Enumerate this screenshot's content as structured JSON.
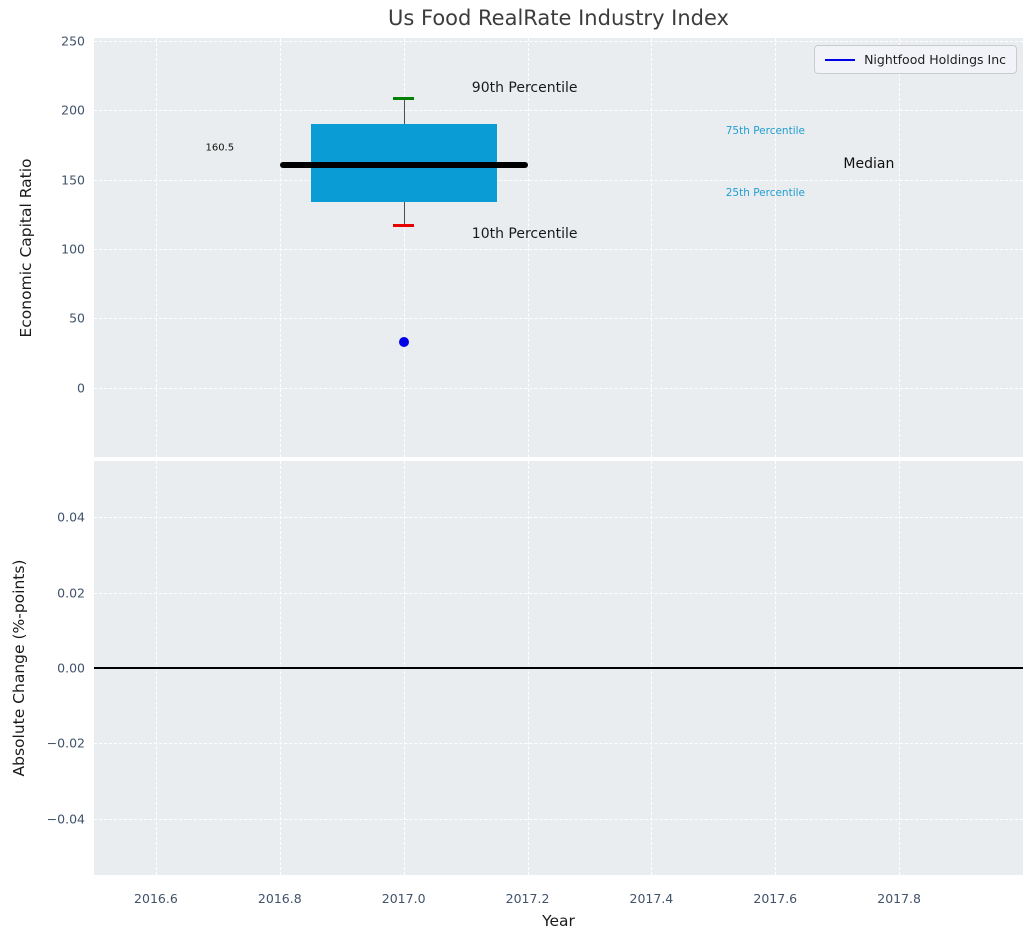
{
  "colors": {
    "axes_bg": "#eaedef",
    "grid": "#ffffff",
    "box_fill": "#0a9cd4",
    "whisker": "#4d4d4d",
    "cap_90": "#008000",
    "cap_10": "#e80000",
    "series": "#0000e6",
    "percentile_label": "#219ed2",
    "tick_label": "#40536a",
    "title": "#3c3c3c",
    "annotation": "#1a1a1a",
    "legend_bg": "#f2f3f8",
    "legend_border": "#cbcbcb"
  },
  "chart_data": [
    {
      "type": "box",
      "title": "Us Food RealRate Industry Index",
      "ylabel": "Economic Capital Ratio",
      "xlabel": "",
      "xlim": [
        2016.5,
        2018.0
      ],
      "ylim": [
        -50,
        252
      ],
      "grid": "dashed",
      "legend_position": "upper right",
      "xticks": {
        "values": [
          2016.6,
          2016.8,
          2017.0,
          2017.2,
          2017.4,
          2017.6,
          2017.8
        ],
        "labels": []
      },
      "yticks": {
        "values": [
          0,
          50,
          100,
          150,
          200,
          250
        ],
        "labels": [
          "0",
          "50",
          "100",
          "150",
          "200",
          "250"
        ]
      },
      "box": {
        "x": 2017.0,
        "p10": 117,
        "p25": 134,
        "median": 160.5,
        "p75": 190,
        "p90": 209,
        "box_halfwidth": 0.15,
        "median_halfwidth": 0.2,
        "cap_halfwidth": 0.017
      },
      "company_point": {
        "name": "Nightfood Holdings Inc",
        "x": 2017.0,
        "y": 33
      },
      "legend": {
        "label": "Nightfood Holdings Inc"
      },
      "annotations": [
        {
          "text": "90th Percentile",
          "x": 2017.11,
          "y": 216,
          "color": "#1a1a1a",
          "size": 14
        },
        {
          "text": "10th Percentile",
          "x": 2017.11,
          "y": 111,
          "color": "#1a1a1a",
          "size": 14
        },
        {
          "text": "75th Percentile",
          "x": 2017.52,
          "y": 185,
          "color": "#219ed2",
          "size": 10.5
        },
        {
          "text": "25th Percentile",
          "x": 2017.52,
          "y": 140,
          "color": "#219ed2",
          "size": 10.5
        },
        {
          "text": "Median",
          "x": 2017.71,
          "y": 161,
          "color": "#111111",
          "size": 14
        },
        {
          "text": "160.5",
          "x": 2016.68,
          "y": 173,
          "color": "#111111",
          "size": 10
        }
      ]
    },
    {
      "type": "line",
      "title": "",
      "ylabel": "Absolute Change (%-points)",
      "xlabel": "Year",
      "xlim": [
        2016.5,
        2018.0
      ],
      "ylim": [
        -0.055,
        0.055
      ],
      "grid": "dashed",
      "xticks": {
        "values": [
          2016.6,
          2016.8,
          2017.0,
          2017.2,
          2017.4,
          2017.6,
          2017.8
        ],
        "labels": [
          "2016.6",
          "2016.8",
          "2017.0",
          "2017.2",
          "2017.4",
          "2017.6",
          "2017.8"
        ]
      },
      "yticks": {
        "values": [
          0.04,
          0.02,
          0.0,
          -0.02,
          -0.04
        ],
        "labels": [
          "0.04",
          "0.02",
          "0.00",
          "−0.02",
          "−0.04"
        ]
      },
      "zero_line": 0.0,
      "series": []
    }
  ]
}
